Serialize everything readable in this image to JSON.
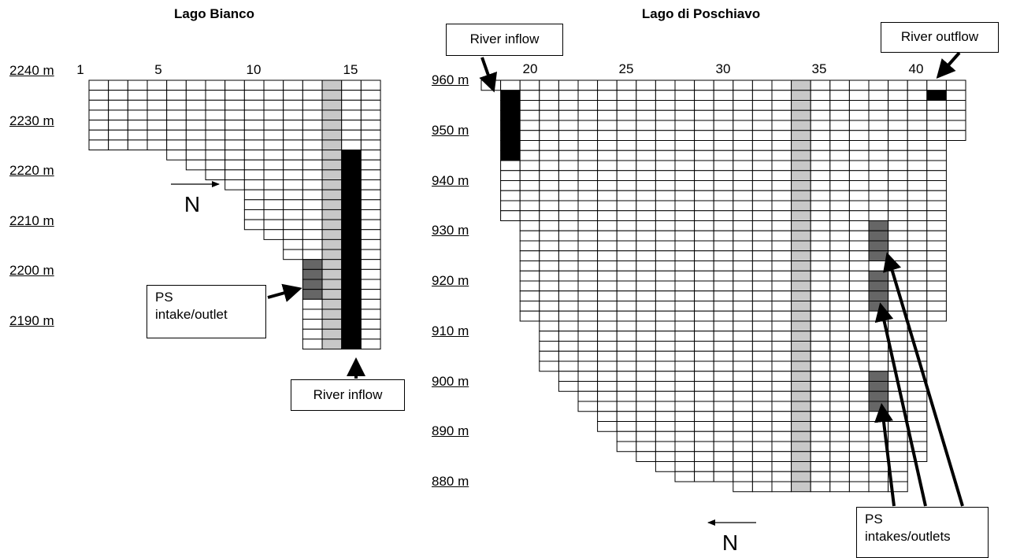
{
  "left_panel": {
    "title": "Lago Bianco",
    "column_labels": [
      1,
      5,
      10,
      15
    ],
    "depth_labels": [
      "2240 m",
      "2230 m",
      "2220 m",
      "2210 m",
      "2200 m",
      "2190 m"
    ],
    "north_label": "N",
    "callouts": [
      "PS intake/outlet",
      "River inflow"
    ]
  },
  "right_panel": {
    "title": "Lago di Poschiavo",
    "column_labels": [
      20,
      25,
      30,
      35,
      40
    ],
    "depth_labels": [
      "960 m",
      "950 m",
      "940 m",
      "930 m",
      "920 m",
      "910 m",
      "900 m",
      "890 m",
      "880 m"
    ],
    "north_label": "N",
    "callouts": [
      "River inflow",
      "River outflow",
      "PS intakes/outlets"
    ]
  }
}
